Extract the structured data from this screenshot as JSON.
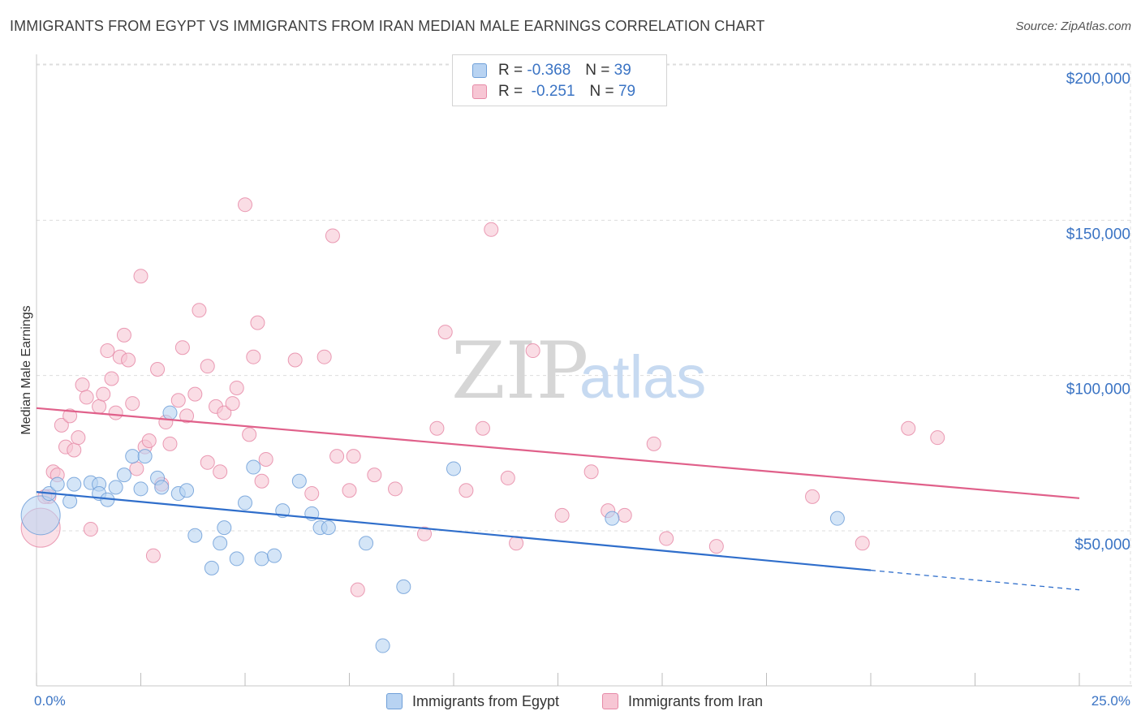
{
  "title": "IMMIGRANTS FROM EGYPT VS IMMIGRANTS FROM IRAN MEDIAN MALE EARNINGS CORRELATION CHART",
  "source": "Source: ZipAtlas.com",
  "watermark": {
    "zip": "ZIP",
    "atlas": "atlas"
  },
  "legend": {
    "r_label": "R =",
    "n_label": "N =",
    "egypt": {
      "r": "-0.368",
      "n": "39"
    },
    "iran": {
      "r": "-0.251",
      "n": "79"
    }
  },
  "chart_data": {
    "type": "scatter",
    "title": "IMMIGRANTS FROM EGYPT VS IMMIGRANTS FROM IRAN MEDIAN MALE EARNINGS CORRELATION CHART",
    "xlabel": "",
    "ylabel": "Median Male Earnings",
    "xlim": [
      0,
      25
    ],
    "ylim": [
      0,
      210000
    ],
    "x_tick_labels": [
      "0.0%",
      "25.0%"
    ],
    "y_ticks": [
      {
        "value": 50000,
        "label": "$50,000"
      },
      {
        "value": 100000,
        "label": "$100,000"
      },
      {
        "value": 150000,
        "label": "$150,000"
      },
      {
        "value": 200000,
        "label": "$200,000"
      }
    ],
    "grid": true,
    "legend_position": "top-center",
    "colors": {
      "egypt_fill": "#b8d3f2",
      "egypt_stroke": "#6f9fd8",
      "egypt_line": "#2f6ecb",
      "iran_fill": "#f7c6d4",
      "iran_stroke": "#e68aa7",
      "iran_line": "#e0608a",
      "axis_text": "#3b74c4",
      "grid": "#dddddd"
    },
    "series": [
      {
        "name": "Immigrants from Egypt",
        "color": "egypt",
        "trend": {
          "x0": 0,
          "y0": 62500,
          "x_solid_end": 20,
          "x1": 25,
          "y1": 31000
        },
        "points": [
          [
            0.1,
            55000
          ],
          [
            0.3,
            62000
          ],
          [
            0.5,
            65000
          ],
          [
            0.8,
            59500
          ],
          [
            0.9,
            65000
          ],
          [
            1.3,
            65500
          ],
          [
            1.5,
            65000
          ],
          [
            1.5,
            62000
          ],
          [
            1.7,
            60000
          ],
          [
            1.9,
            64000
          ],
          [
            2.1,
            68000
          ],
          [
            2.3,
            74000
          ],
          [
            2.5,
            63500
          ],
          [
            2.6,
            74000
          ],
          [
            2.9,
            67000
          ],
          [
            3.0,
            64000
          ],
          [
            3.2,
            88000
          ],
          [
            3.4,
            62000
          ],
          [
            3.6,
            63000
          ],
          [
            3.8,
            48500
          ],
          [
            4.2,
            38000
          ],
          [
            4.4,
            46000
          ],
          [
            4.5,
            51000
          ],
          [
            4.8,
            41000
          ],
          [
            5.0,
            59000
          ],
          [
            5.2,
            70500
          ],
          [
            5.4,
            41000
          ],
          [
            5.7,
            42000
          ],
          [
            5.9,
            56500
          ],
          [
            6.3,
            66000
          ],
          [
            6.6,
            55500
          ],
          [
            6.8,
            51000
          ],
          [
            7.0,
            51000
          ],
          [
            7.9,
            46000
          ],
          [
            8.3,
            13000
          ],
          [
            8.8,
            32000
          ],
          [
            10.0,
            70000
          ],
          [
            13.8,
            54000
          ],
          [
            19.2,
            54000
          ]
        ]
      },
      {
        "name": "Immigrants from Iran",
        "color": "iran",
        "trend": {
          "x0": 0,
          "y0": 89500,
          "x1": 25,
          "y1": 60500
        },
        "points": [
          [
            0.1,
            51000
          ],
          [
            0.3,
            61000
          ],
          [
            0.4,
            69000
          ],
          [
            0.5,
            68000
          ],
          [
            0.6,
            84000
          ],
          [
            0.7,
            77000
          ],
          [
            0.8,
            87000
          ],
          [
            0.9,
            76000
          ],
          [
            1.0,
            80000
          ],
          [
            1.1,
            97000
          ],
          [
            1.2,
            93000
          ],
          [
            1.3,
            50500
          ],
          [
            1.5,
            90000
          ],
          [
            1.6,
            94000
          ],
          [
            1.7,
            108000
          ],
          [
            1.8,
            99000
          ],
          [
            1.9,
            88000
          ],
          [
            2.0,
            106000
          ],
          [
            2.1,
            113000
          ],
          [
            2.2,
            105000
          ],
          [
            2.3,
            91000
          ],
          [
            2.4,
            70000
          ],
          [
            2.5,
            132000
          ],
          [
            2.6,
            77000
          ],
          [
            2.7,
            79000
          ],
          [
            2.8,
            42000
          ],
          [
            2.9,
            102000
          ],
          [
            3.0,
            65000
          ],
          [
            3.1,
            85000
          ],
          [
            3.2,
            78000
          ],
          [
            3.4,
            92000
          ],
          [
            3.5,
            109000
          ],
          [
            3.6,
            87000
          ],
          [
            3.8,
            94000
          ],
          [
            3.9,
            121000
          ],
          [
            4.1,
            103000
          ],
          [
            4.1,
            72000
          ],
          [
            4.3,
            90000
          ],
          [
            4.4,
            69000
          ],
          [
            4.5,
            88000
          ],
          [
            4.7,
            91000
          ],
          [
            4.8,
            96000
          ],
          [
            5.0,
            155000
          ],
          [
            5.1,
            81000
          ],
          [
            5.2,
            106000
          ],
          [
            5.3,
            117000
          ],
          [
            5.4,
            66000
          ],
          [
            5.5,
            73000
          ],
          [
            6.2,
            105000
          ],
          [
            6.6,
            62000
          ],
          [
            6.9,
            106000
          ],
          [
            7.1,
            145000
          ],
          [
            7.2,
            74000
          ],
          [
            7.5,
            63000
          ],
          [
            7.6,
            74000
          ],
          [
            7.7,
            31000
          ],
          [
            8.1,
            68000
          ],
          [
            8.6,
            63500
          ],
          [
            9.3,
            49000
          ],
          [
            9.6,
            83000
          ],
          [
            9.8,
            114000
          ],
          [
            10.3,
            63000
          ],
          [
            10.7,
            83000
          ],
          [
            10.9,
            147000
          ],
          [
            11.3,
            67000
          ],
          [
            11.5,
            46000
          ],
          [
            11.9,
            108000
          ],
          [
            12.6,
            55000
          ],
          [
            13.3,
            69000
          ],
          [
            13.7,
            56500
          ],
          [
            14.1,
            55000
          ],
          [
            14.8,
            78000
          ],
          [
            15.1,
            47500
          ],
          [
            16.3,
            45000
          ],
          [
            18.6,
            61000
          ],
          [
            19.8,
            46000
          ],
          [
            20.9,
            83000
          ],
          [
            21.6,
            80000
          ],
          [
            0.2,
            61000
          ]
        ]
      }
    ]
  },
  "bottom_legend": {
    "egypt_label": "Immigrants from Egypt",
    "iran_label": "Immigrants from Iran"
  }
}
